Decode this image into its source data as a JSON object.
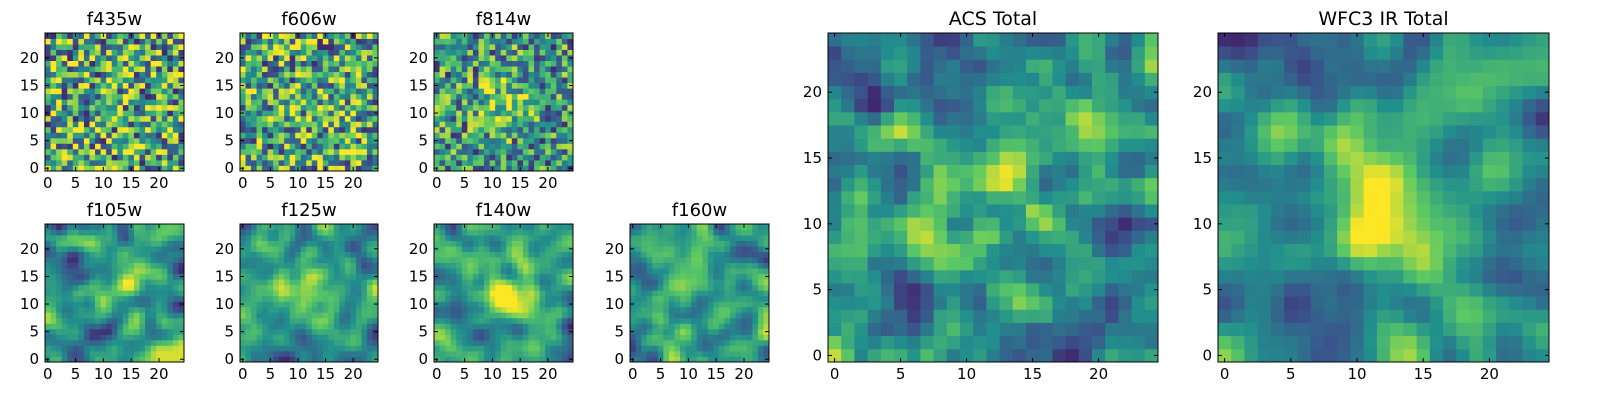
{
  "colormap": [
    "#440154",
    "#3b528b",
    "#21908d",
    "#5dc963",
    "#fde725"
  ],
  "chart_data": [
    {
      "type": "heatmap",
      "title": "f435w",
      "size": 25,
      "xticks": [
        "0",
        "5",
        "10",
        "15",
        "20"
      ],
      "yticks": [
        "0",
        "5",
        "10",
        "15",
        "20"
      ],
      "blob": 0.0,
      "smooth": 0,
      "seed": 11
    },
    {
      "type": "heatmap",
      "title": "f606w",
      "size": 25,
      "xticks": [
        "0",
        "5",
        "10",
        "15",
        "20"
      ],
      "yticks": [
        "0",
        "5",
        "10",
        "15",
        "20"
      ],
      "blob": 0.15,
      "smooth": 0,
      "seed": 23
    },
    {
      "type": "heatmap",
      "title": "f814w",
      "size": 25,
      "xticks": [
        "0",
        "5",
        "10",
        "15",
        "20"
      ],
      "yticks": [
        "0",
        "5",
        "10",
        "15",
        "20"
      ],
      "blob": 0.55,
      "smooth": 0,
      "seed": 37
    },
    {
      "type": "heatmap",
      "title": "f105w",
      "size": 25,
      "xticks": [
        "0",
        "5",
        "10",
        "15",
        "20"
      ],
      "yticks": [
        "0",
        "5",
        "10",
        "15",
        "20"
      ],
      "blob": 0.5,
      "smooth": 2,
      "seed": 41
    },
    {
      "type": "heatmap",
      "title": "f125w",
      "size": 25,
      "xticks": [
        "0",
        "5",
        "10",
        "15",
        "20"
      ],
      "yticks": [
        "0",
        "5",
        "10",
        "15",
        "20"
      ],
      "blob": 0.55,
      "smooth": 2,
      "seed": 53
    },
    {
      "type": "heatmap",
      "title": "f140w",
      "size": 25,
      "xticks": [
        "0",
        "5",
        "10",
        "15",
        "20"
      ],
      "yticks": [
        "0",
        "5",
        "10",
        "15",
        "20"
      ],
      "blob": 0.7,
      "smooth": 2,
      "seed": 67
    },
    {
      "type": "heatmap",
      "title": "f160w",
      "size": 25,
      "xticks": [
        "0",
        "5",
        "10",
        "15",
        "20"
      ],
      "yticks": [
        "0",
        "5",
        "10",
        "15",
        "20"
      ],
      "blob": 0.5,
      "smooth": 2,
      "seed": 79
    },
    {
      "type": "heatmap",
      "title": "ACS Total",
      "size": 25,
      "xticks": [
        "0",
        "5",
        "10",
        "15",
        "20"
      ],
      "yticks": [
        "0",
        "5",
        "10",
        "15",
        "20"
      ],
      "blob": 0.6,
      "smooth": 1,
      "seed": 83
    },
    {
      "type": "heatmap",
      "title": "WFC3 IR Total",
      "size": 25,
      "xticks": [
        "0",
        "5",
        "10",
        "15",
        "20"
      ],
      "yticks": [
        "0",
        "5",
        "10",
        "15",
        "20"
      ],
      "blob": 0.75,
      "smooth": 2,
      "seed": 97
    }
  ]
}
